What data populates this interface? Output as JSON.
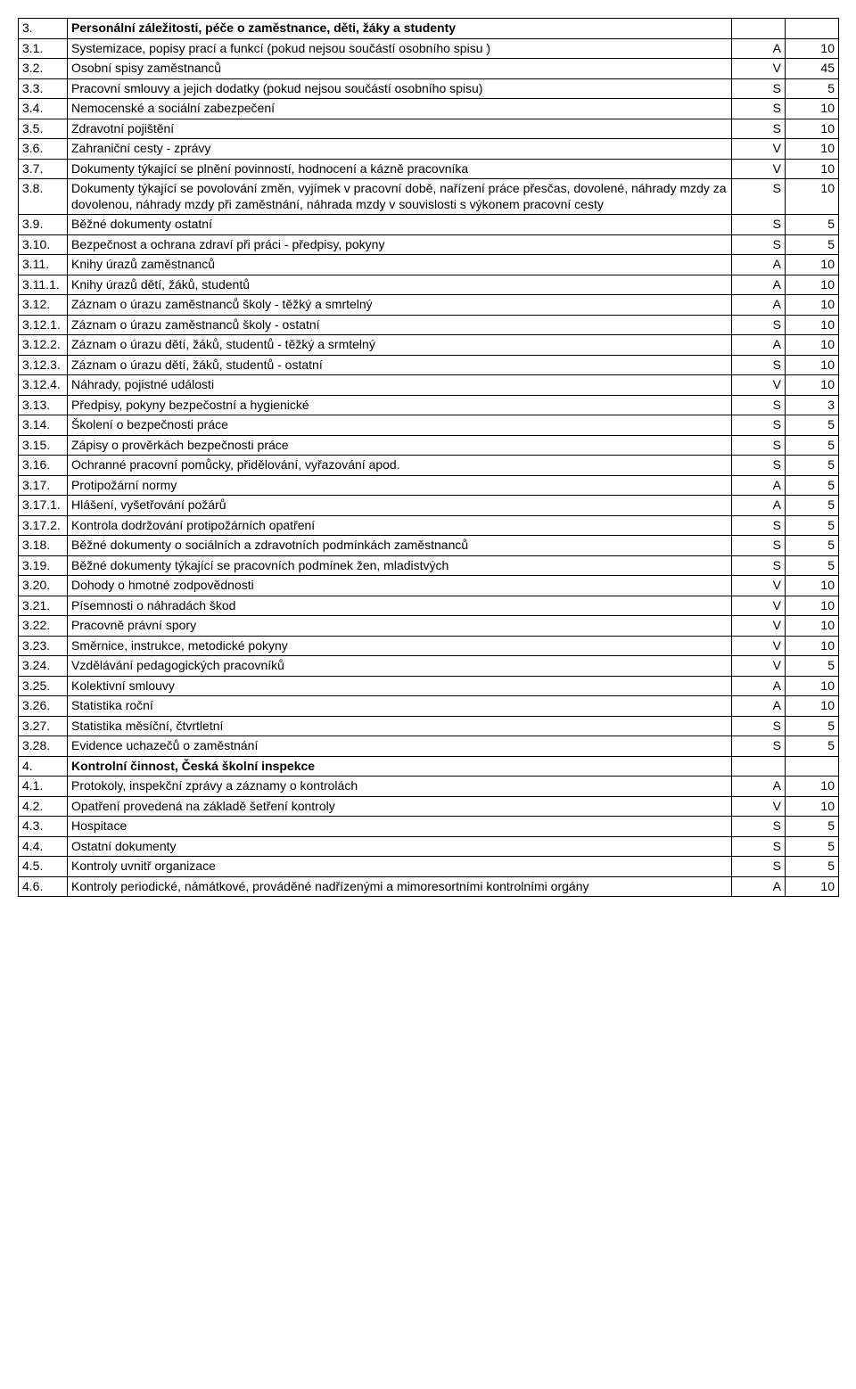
{
  "rows": [
    {
      "num": "3.",
      "text": "Personální záležitosti, péče o zaměstnance, děti, žáky a studenty",
      "mark": "",
      "val": "",
      "bold": true
    },
    {
      "num": "3.1.",
      "text": "Systemizace, popisy prací a funkcí (pokud nejsou součástí osobního spisu )",
      "mark": "A",
      "val": "10"
    },
    {
      "num": "3.2.",
      "text": "Osobní spisy zaměstnanců",
      "mark": "V",
      "val": "45"
    },
    {
      "num": "3.3.",
      "text": "Pracovní smlouvy a jejich dodatky (pokud nejsou součástí osobního spisu)",
      "mark": "S",
      "val": "5"
    },
    {
      "num": "3.4.",
      "text": "Nemocenské a sociální zabezpečení",
      "mark": "S",
      "val": "10"
    },
    {
      "num": "3.5.",
      "text": "Zdravotní pojištění",
      "mark": "S",
      "val": "10"
    },
    {
      "num": "3.6.",
      "text": "Zahraniční cesty - zprávy",
      "mark": "V",
      "val": "10"
    },
    {
      "num": "3.7.",
      "text": "Dokumenty týkající se plnění povinností, hodnocení a kázně pracovníka",
      "mark": "V",
      "val": "10"
    },
    {
      "num": "3.8.",
      "text": "Dokumenty týkající se  povolování změn, vyjímek v pracovní době, nařízení práce přesčas, dovolené, náhrady mzdy za dovolenou, náhrady mzdy při zaměstnání, náhrada mzdy v souvislosti s výkonem pracovní cesty",
      "mark": "S",
      "val": "10"
    },
    {
      "num": "3.9.",
      "text": "Běžné dokumenty ostatní",
      "mark": "S",
      "val": "5"
    },
    {
      "num": "3.10.",
      "text": "Bezpečnost a ochrana zdraví při práci - předpisy, pokyny",
      "mark": "S",
      "val": "5"
    },
    {
      "num": "3.11.",
      "text": "Knihy úrazů zaměstnanců",
      "mark": "A",
      "val": "10"
    },
    {
      "num": "3.11.1.",
      "text": "Knihy úrazů dětí, žáků, studentů",
      "mark": "A",
      "val": "10"
    },
    {
      "num": "3.12.",
      "text": "Záznam o úrazu zaměstnanců školy - těžký a smrtelný",
      "mark": "A",
      "val": "10"
    },
    {
      "num": "3.12.1.",
      "text": "Záznam o úrazu zaměstnanců školy - ostatní",
      "mark": "S",
      "val": "10"
    },
    {
      "num": "3.12.2.",
      "text": "Záznam o úrazu dětí, žáků, studentů - těžký a srmtelný",
      "mark": "A",
      "val": "10"
    },
    {
      "num": "3.12.3.",
      "text": "Záznam o úrazu dětí, žáků, studentů - ostatní",
      "mark": "S",
      "val": "10"
    },
    {
      "num": "3.12.4.",
      "text": "Náhrady, pojistné události",
      "mark": "V",
      "val": "10"
    },
    {
      "num": "3.13.",
      "text": "Předpisy, pokyny bezpečostní a hygienické",
      "mark": "S",
      "val": "3"
    },
    {
      "num": "3.14.",
      "text": "Školení o bezpečnosti práce",
      "mark": "S",
      "val": "5"
    },
    {
      "num": "3.15.",
      "text": "Zápisy o prověrkách bezpečnosti práce",
      "mark": "S",
      "val": "5"
    },
    {
      "num": "3.16.",
      "text": "Ochranné pracovní pomůcky, přidělování, vyřazování apod.",
      "mark": "S",
      "val": "5"
    },
    {
      "num": "3.17.",
      "text": "Protipožární normy",
      "mark": "A",
      "val": "5"
    },
    {
      "num": "3.17.1.",
      "text": "Hlášení, vyšetřování požárů",
      "mark": "A",
      "val": "5"
    },
    {
      "num": "3.17.2.",
      "text": "Kontrola dodržování protipožárních opatření",
      "mark": "S",
      "val": "5"
    },
    {
      "num": "3.18.",
      "text": "Běžné dokumenty o sociálních a zdravotních podmínkách zaměstnanců",
      "mark": "S",
      "val": "5"
    },
    {
      "num": "3.19.",
      "text": "Běžné dokumenty týkající se pracovních podmínek žen, mladistvých",
      "mark": "S",
      "val": "5"
    },
    {
      "num": "3.20.",
      "text": "Dohody o hmotné zodpovědnosti",
      "mark": "V",
      "val": "10"
    },
    {
      "num": "3.21.",
      "text": "Písemnosti o náhradách škod",
      "mark": "V",
      "val": "10"
    },
    {
      "num": "3.22.",
      "text": "Pracovně právní spory",
      "mark": "V",
      "val": "10"
    },
    {
      "num": "3.23.",
      "text": "Směrnice, instrukce, metodické pokyny",
      "mark": "V",
      "val": "10"
    },
    {
      "num": "3.24.",
      "text": "Vzdělávání pedagogických pracovníků",
      "mark": "V",
      "val": "5"
    },
    {
      "num": "3.25.",
      "text": "Kolektivní smlouvy",
      "mark": "A",
      "val": "10"
    },
    {
      "num": "3.26.",
      "text": "Statistika roční",
      "mark": "A",
      "val": "10"
    },
    {
      "num": "3.27.",
      "text": "Statistika měsíční, čtvrtletní",
      "mark": "S",
      "val": "5"
    },
    {
      "num": "3.28.",
      "text": "Evidence uchazečů o zaměstnání",
      "mark": "S",
      "val": "5"
    },
    {
      "num": "4.",
      "text": "Kontrolní činnost, Česká školní inspekce",
      "mark": "",
      "val": "",
      "bold": true
    },
    {
      "num": "4.1.",
      "text": "Protokoly, inspekční zprávy a záznamy o kontrolách",
      "mark": "A",
      "val": "10"
    },
    {
      "num": "4.2.",
      "text": "Opatření provedená na základě šetření kontroly",
      "mark": "V",
      "val": "10"
    },
    {
      "num": "4.3.",
      "text": "Hospitace",
      "mark": "S",
      "val": "5"
    },
    {
      "num": "4.4.",
      "text": "Ostatní dokumenty",
      "mark": "S",
      "val": "5"
    },
    {
      "num": "4.5.",
      "text": "Kontroly uvnitř organizace",
      "mark": "S",
      "val": "5"
    },
    {
      "num": "4.6.",
      "text": "Kontroly periodické, námátkové, prováděné nadřízenými a mimoresortními kontrolními orgány",
      "mark": "A",
      "val": "10"
    }
  ]
}
